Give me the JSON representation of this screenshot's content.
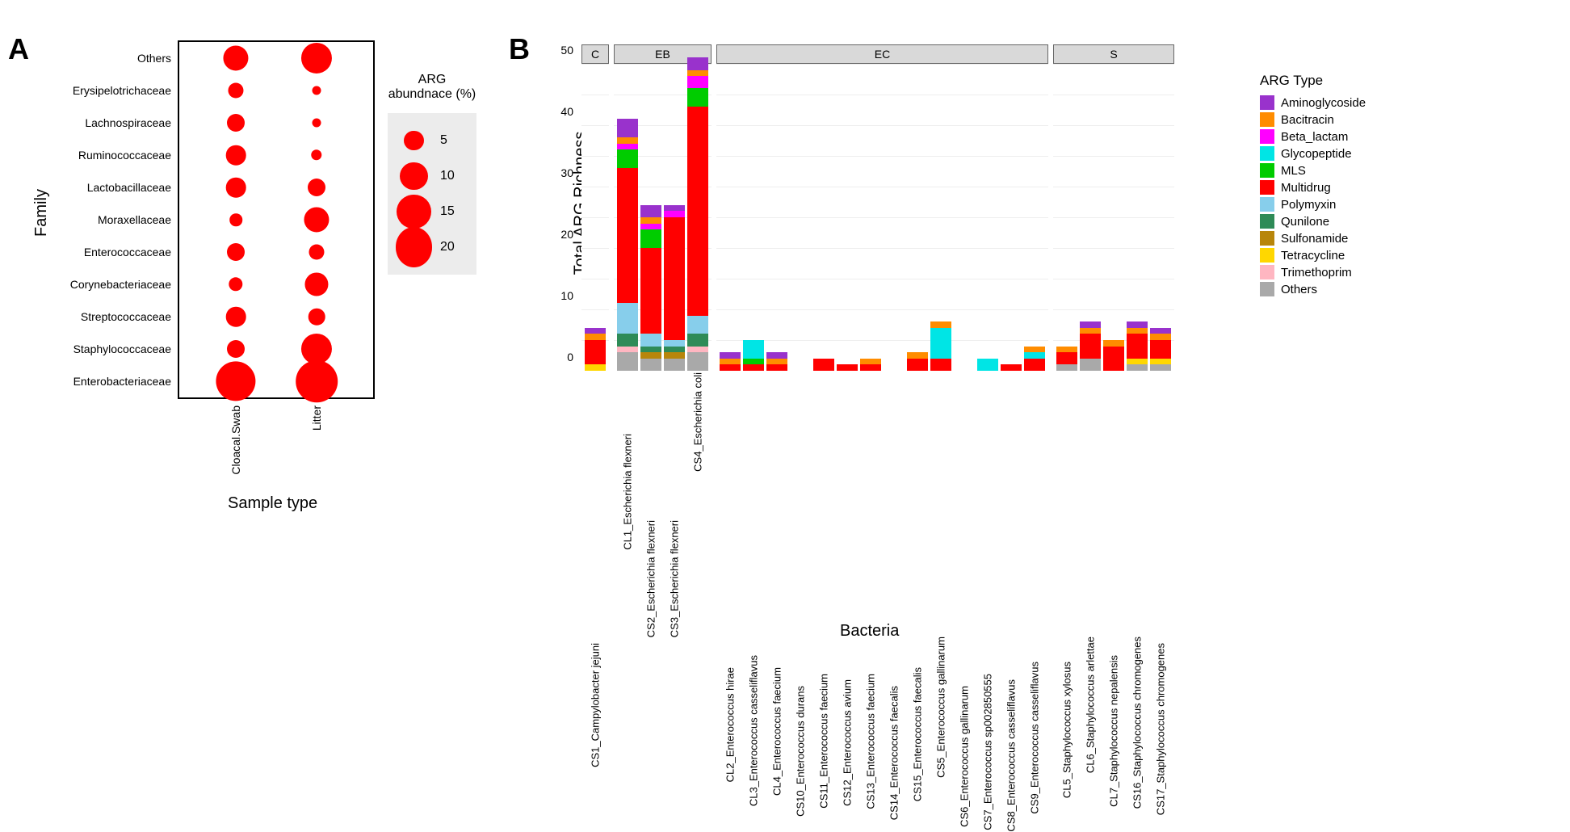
{
  "panelA": {
    "label": "A",
    "y_title": "Family",
    "x_title": "Sample type",
    "legend_title": "ARG\nabundnace (%)",
    "x_categories": [
      "Cloacal.Swab",
      "Litter"
    ],
    "families": [
      "Others",
      "Erysipelotrichaceae",
      "Lachnospiraceae",
      "Ruminococcaceae",
      "Lactobacillaceae",
      "Moraxellaceae",
      "Enterococcaceae",
      "Corynebacteriaceae",
      "Streptococcaceae",
      "Staphylococcaceae",
      "Enterobacteriaceae"
    ],
    "bubble_color": "#ff0000",
    "legend_sizes": [
      5,
      10,
      15,
      20
    ],
    "data": [
      {
        "family": "Others",
        "x": "Cloacal.Swab",
        "value": 8
      },
      {
        "family": "Others",
        "x": "Litter",
        "value": 12
      },
      {
        "family": "Erysipelotrichaceae",
        "x": "Cloacal.Swab",
        "value": 3
      },
      {
        "family": "Erysipelotrichaceae",
        "x": "Litter",
        "value": 1
      },
      {
        "family": "Lachnospiraceae",
        "x": "Cloacal.Swab",
        "value": 4
      },
      {
        "family": "Lachnospiraceae",
        "x": "Litter",
        "value": 1
      },
      {
        "family": "Ruminococcaceae",
        "x": "Cloacal.Swab",
        "value": 5
      },
      {
        "family": "Ruminococcaceae",
        "x": "Litter",
        "value": 1.5
      },
      {
        "family": "Lactobacillaceae",
        "x": "Cloacal.Swab",
        "value": 5
      },
      {
        "family": "Lactobacillaceae",
        "x": "Litter",
        "value": 4
      },
      {
        "family": "Moraxellaceae",
        "x": "Cloacal.Swab",
        "value": 2
      },
      {
        "family": "Moraxellaceae",
        "x": "Litter",
        "value": 8
      },
      {
        "family": "Enterococcaceae",
        "x": "Cloacal.Swab",
        "value": 4
      },
      {
        "family": "Enterococcaceae",
        "x": "Litter",
        "value": 3
      },
      {
        "family": "Corynebacteriaceae",
        "x": "Cloacal.Swab",
        "value": 2.5
      },
      {
        "family": "Corynebacteriaceae",
        "x": "Litter",
        "value": 7
      },
      {
        "family": "Streptococcaceae",
        "x": "Cloacal.Swab",
        "value": 5
      },
      {
        "family": "Streptococcaceae",
        "x": "Litter",
        "value": 3.5
      },
      {
        "family": "Staphylococcaceae",
        "x": "Cloacal.Swab",
        "value": 4
      },
      {
        "family": "Staphylococcaceae",
        "x": "Litter",
        "value": 12
      },
      {
        "family": "Enterobacteriaceae",
        "x": "Cloacal.Swab",
        "value": 20
      },
      {
        "family": "Enterobacteriaceae",
        "x": "Litter",
        "value": 22
      }
    ]
  },
  "panelB": {
    "label": "B",
    "y_title": "Total ARG Richness",
    "x_title": "Bacteria",
    "legend_title": "ARG Type",
    "y_max": 50,
    "y_ticks": [
      0,
      10,
      20,
      30,
      40,
      50
    ],
    "arg_types": [
      {
        "name": "Aminoglycoside",
        "color": "#9932cc"
      },
      {
        "name": "Bacitracin",
        "color": "#ff8c00"
      },
      {
        "name": "Beta_lactam",
        "color": "#ff00ff"
      },
      {
        "name": "Glycopeptide",
        "color": "#00e5e5"
      },
      {
        "name": "MLS",
        "color": "#00cc00"
      },
      {
        "name": "Multidrug",
        "color": "#ff0000"
      },
      {
        "name": "Polymyxin",
        "color": "#87ceeb"
      },
      {
        "name": "Qunilone",
        "color": "#2e8b57"
      },
      {
        "name": "Sulfonamide",
        "color": "#b8860b"
      },
      {
        "name": "Tetracycline",
        "color": "#ffd700"
      },
      {
        "name": "Trimethoprim",
        "color": "#ffb6c1"
      },
      {
        "name": "Others",
        "color": "#a9a9a9"
      }
    ],
    "facets": [
      {
        "name": "C",
        "bars": [
          {
            "label": "CS1_Campylobacter jejuni",
            "stack": {
              "Multidrug": 4,
              "Bacitracin": 1,
              "Tetracycline": 1,
              "Aminoglycoside": 1
            }
          }
        ]
      },
      {
        "name": "EB",
        "bars": [
          {
            "label": "CL1_Escherichia flexneri",
            "stack": {
              "Others": 3,
              "Trimethoprim": 1,
              "Qunilone": 2,
              "Polymyxin": 5,
              "Multidrug": 22,
              "MLS": 3,
              "Beta_lactam": 1,
              "Bacitracin": 1,
              "Aminoglycoside": 3
            }
          },
          {
            "label": "CS2_Escherichia flexneri",
            "stack": {
              "Others": 2,
              "Sulfonamide": 1,
              "Qunilone": 1,
              "Polymyxin": 2,
              "Multidrug": 14,
              "MLS": 3,
              "Beta_lactam": 1,
              "Bacitracin": 1,
              "Aminoglycoside": 2
            }
          },
          {
            "label": "CS3_Escherichia flexneri",
            "stack": {
              "Others": 2,
              "Sulfonamide": 1,
              "Qunilone": 1,
              "Polymyxin": 1,
              "Multidrug": 20,
              "Beta_lactam": 1,
              "Aminoglycoside": 1
            }
          },
          {
            "label": "CS4_Escherichia coli",
            "stack": {
              "Others": 3,
              "Trimethoprim": 1,
              "Qunilone": 2,
              "Polymyxin": 3,
              "Multidrug": 34,
              "MLS": 3,
              "Beta_lactam": 2,
              "Bacitracin": 1,
              "Aminoglycoside": 2
            }
          }
        ]
      },
      {
        "name": "EC",
        "bars": [
          {
            "label": "CL2_Enterococcus hirae",
            "stack": {
              "Multidrug": 1,
              "Bacitracin": 1,
              "Aminoglycoside": 1
            }
          },
          {
            "label": "CL3_Enterococcus casseliflavus",
            "stack": {
              "Multidrug": 1,
              "MLS": 1,
              "Glycopeptide": 3
            }
          },
          {
            "label": "CL4_Enterococcus faecium",
            "stack": {
              "Multidrug": 1,
              "Bacitracin": 1,
              "Aminoglycoside": 1
            }
          },
          {
            "label": "CS10_Enterococcus durans",
            "stack": {}
          },
          {
            "label": "CS11_Enterococcus faecium",
            "stack": {
              "Multidrug": 2
            }
          },
          {
            "label": "CS12_Enterococcus avium",
            "stack": {
              "Multidrug": 1
            }
          },
          {
            "label": "CS13_Enterococcus faecium",
            "stack": {
              "Multidrug": 1,
              "Bacitracin": 1
            }
          },
          {
            "label": "CS14_Enterococcus faecalis",
            "stack": {}
          },
          {
            "label": "CS15_Enterococcus faecalis",
            "stack": {
              "Multidrug": 2,
              "Bacitracin": 1
            }
          },
          {
            "label": "CS5_Enterococcus gallinarum",
            "stack": {
              "Multidrug": 2,
              "Glycopeptide": 5,
              "Bacitracin": 1
            }
          },
          {
            "label": "CS6_Enterococcus gallinarum",
            "stack": {}
          },
          {
            "label": "CS7_Enterococcus sp002850555",
            "stack": {
              "Glycopeptide": 2
            }
          },
          {
            "label": "CS8_Enterococcus casseliflavus",
            "stack": {
              "Multidrug": 1
            }
          },
          {
            "label": "CS9_Enterococcus casseliflavus",
            "stack": {
              "Multidrug": 2,
              "Bacitracin": 1,
              "Glycopeptide": 1
            }
          }
        ]
      },
      {
        "name": "S",
        "bars": [
          {
            "label": "CL5_Staphylococcus xylosus",
            "stack": {
              "Others": 1,
              "Multidrug": 2,
              "Bacitracin": 1
            }
          },
          {
            "label": "CL6_Staphylococcus arlettae",
            "stack": {
              "Others": 2,
              "Multidrug": 4,
              "Bacitracin": 1,
              "Aminoglycoside": 1
            }
          },
          {
            "label": "CL7_Staphylococcus nepalensis",
            "stack": {
              "Multidrug": 4,
              "Bacitracin": 1
            }
          },
          {
            "label": "CS16_Staphylococcus chromogenes",
            "stack": {
              "Others": 1,
              "Multidrug": 4,
              "Tetracycline": 1,
              "Bacitracin": 1,
              "Aminoglycoside": 1
            }
          },
          {
            "label": "CS17_Staphylococcus chromogenes",
            "stack": {
              "Others": 1,
              "Multidrug": 3,
              "Tetracycline": 1,
              "Bacitracin": 1,
              "Aminoglycoside": 1
            }
          }
        ]
      }
    ]
  }
}
